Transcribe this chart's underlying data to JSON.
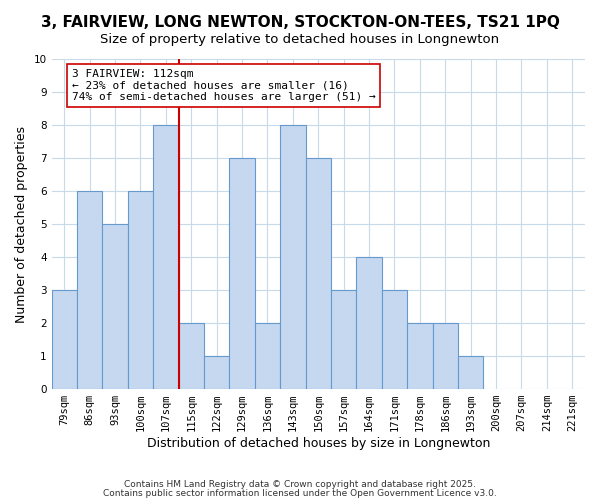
{
  "title": "3, FAIRVIEW, LONG NEWTON, STOCKTON-ON-TEES, TS21 1PQ",
  "subtitle": "Size of property relative to detached houses in Longnewton",
  "xlabel": "Distribution of detached houses by size in Longnewton",
  "ylabel": "Number of detached properties",
  "bin_labels": [
    "79sqm",
    "86sqm",
    "93sqm",
    "100sqm",
    "107sqm",
    "115sqm",
    "122sqm",
    "129sqm",
    "136sqm",
    "143sqm",
    "150sqm",
    "157sqm",
    "164sqm",
    "171sqm",
    "178sqm",
    "186sqm",
    "193sqm",
    "200sqm",
    "207sqm",
    "214sqm",
    "221sqm"
  ],
  "bar_values": [
    3,
    6,
    5,
    6,
    8,
    2,
    1,
    7,
    2,
    8,
    7,
    3,
    4,
    3,
    2,
    2,
    1
  ],
  "bar_color": "#c5d8f0",
  "bar_edge_color": "#6699cc",
  "grid_color": "#c8dae8",
  "annotation_text_line1": "3 FAIRVIEW: 112sqm",
  "annotation_text_line2": "← 23% of detached houses are smaller (16)",
  "annotation_text_line3": "74% of semi-detached houses are larger (51) →",
  "annotation_box_color": "#ffffff",
  "annotation_box_edge_color": "#cc0000",
  "vline_color": "#cc0000",
  "ylim": [
    0,
    10
  ],
  "yticks": [
    0,
    1,
    2,
    3,
    4,
    5,
    6,
    7,
    8,
    9,
    10
  ],
  "footnote1": "Contains HM Land Registry data © Crown copyright and database right 2025.",
  "footnote2": "Contains public sector information licensed under the Open Government Licence v3.0.",
  "title_fontsize": 11,
  "subtitle_fontsize": 9.5,
  "tick_fontsize": 7.5,
  "label_fontsize": 9,
  "footnote_fontsize": 6.5,
  "annotation_fontsize": 8
}
